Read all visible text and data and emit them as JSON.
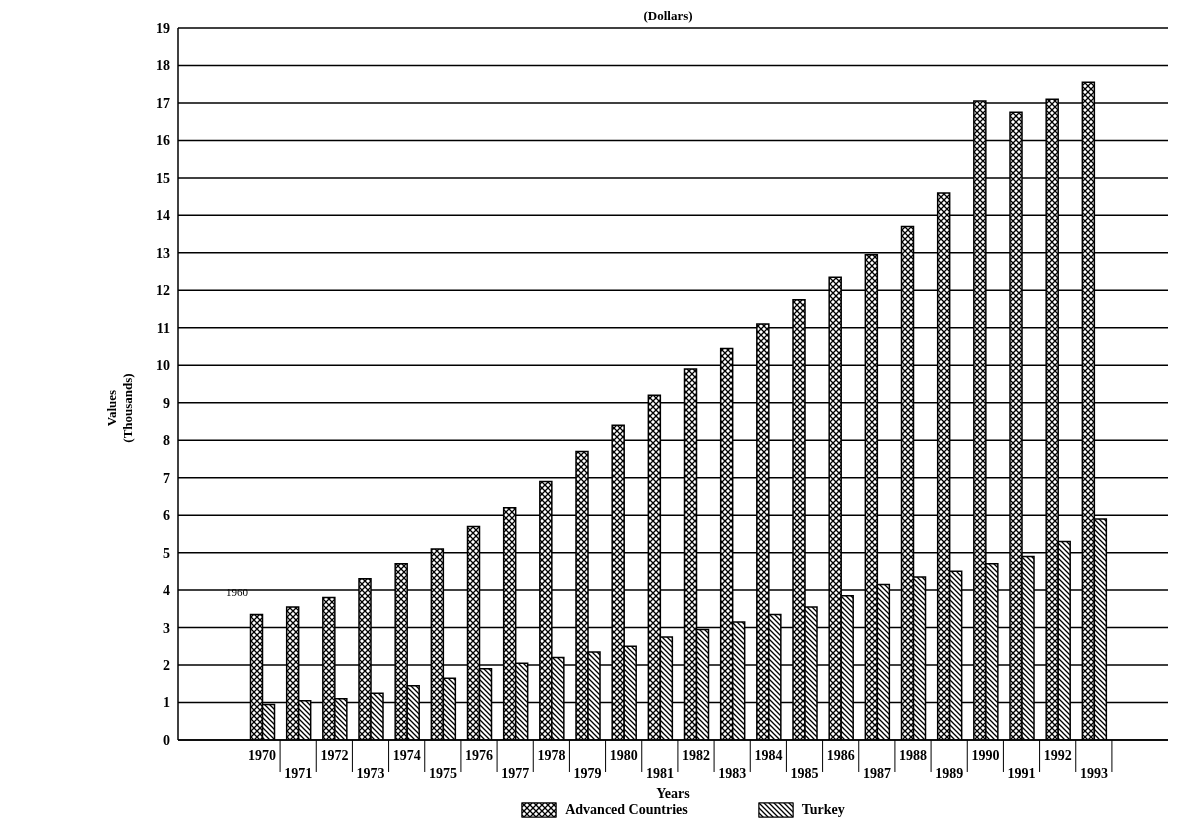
{
  "chart_data": {
    "type": "bar",
    "title": "(Dollars)",
    "xlabel": "Years",
    "ylabel": "Values\n(Thousands)",
    "categories": [
      "1970",
      "1971",
      "1972",
      "1973",
      "1974",
      "1975",
      "1976",
      "1977",
      "1978",
      "1979",
      "1980",
      "1981",
      "1982",
      "1983",
      "1984",
      "1985",
      "1986",
      "1987",
      "1988",
      "1989",
      "1990",
      "1991",
      "1992",
      "1993"
    ],
    "series": [
      {
        "name": "Advanced Countries",
        "color": "#000000",
        "values": [
          3.35,
          3.55,
          3.8,
          4.3,
          4.7,
          5.1,
          5.7,
          6.2,
          6.9,
          7.7,
          8.4,
          9.2,
          9.9,
          10.45,
          11.1,
          11.75,
          12.35,
          12.95,
          13.7,
          14.6,
          17.05,
          16.75,
          17.1,
          17.55
        ]
      },
      {
        "name": "Turkey",
        "color": "#000000",
        "values": [
          0.95,
          1.05,
          1.1,
          1.25,
          1.45,
          1.65,
          1.9,
          2.05,
          2.2,
          2.35,
          2.5,
          2.75,
          2.95,
          3.15,
          3.35,
          3.55,
          3.85,
          4.15,
          4.35,
          4.5,
          4.7,
          4.9,
          5.3,
          5.9
        ]
      }
    ],
    "ylim": [
      0,
      19
    ],
    "yticks": [
      0,
      1,
      2,
      3,
      4,
      5,
      6,
      7,
      8,
      9,
      10,
      11,
      12,
      13,
      14,
      15,
      16,
      17,
      18,
      19
    ],
    "grid": "y",
    "legend": "bottom",
    "annotations": [
      "1960"
    ]
  }
}
